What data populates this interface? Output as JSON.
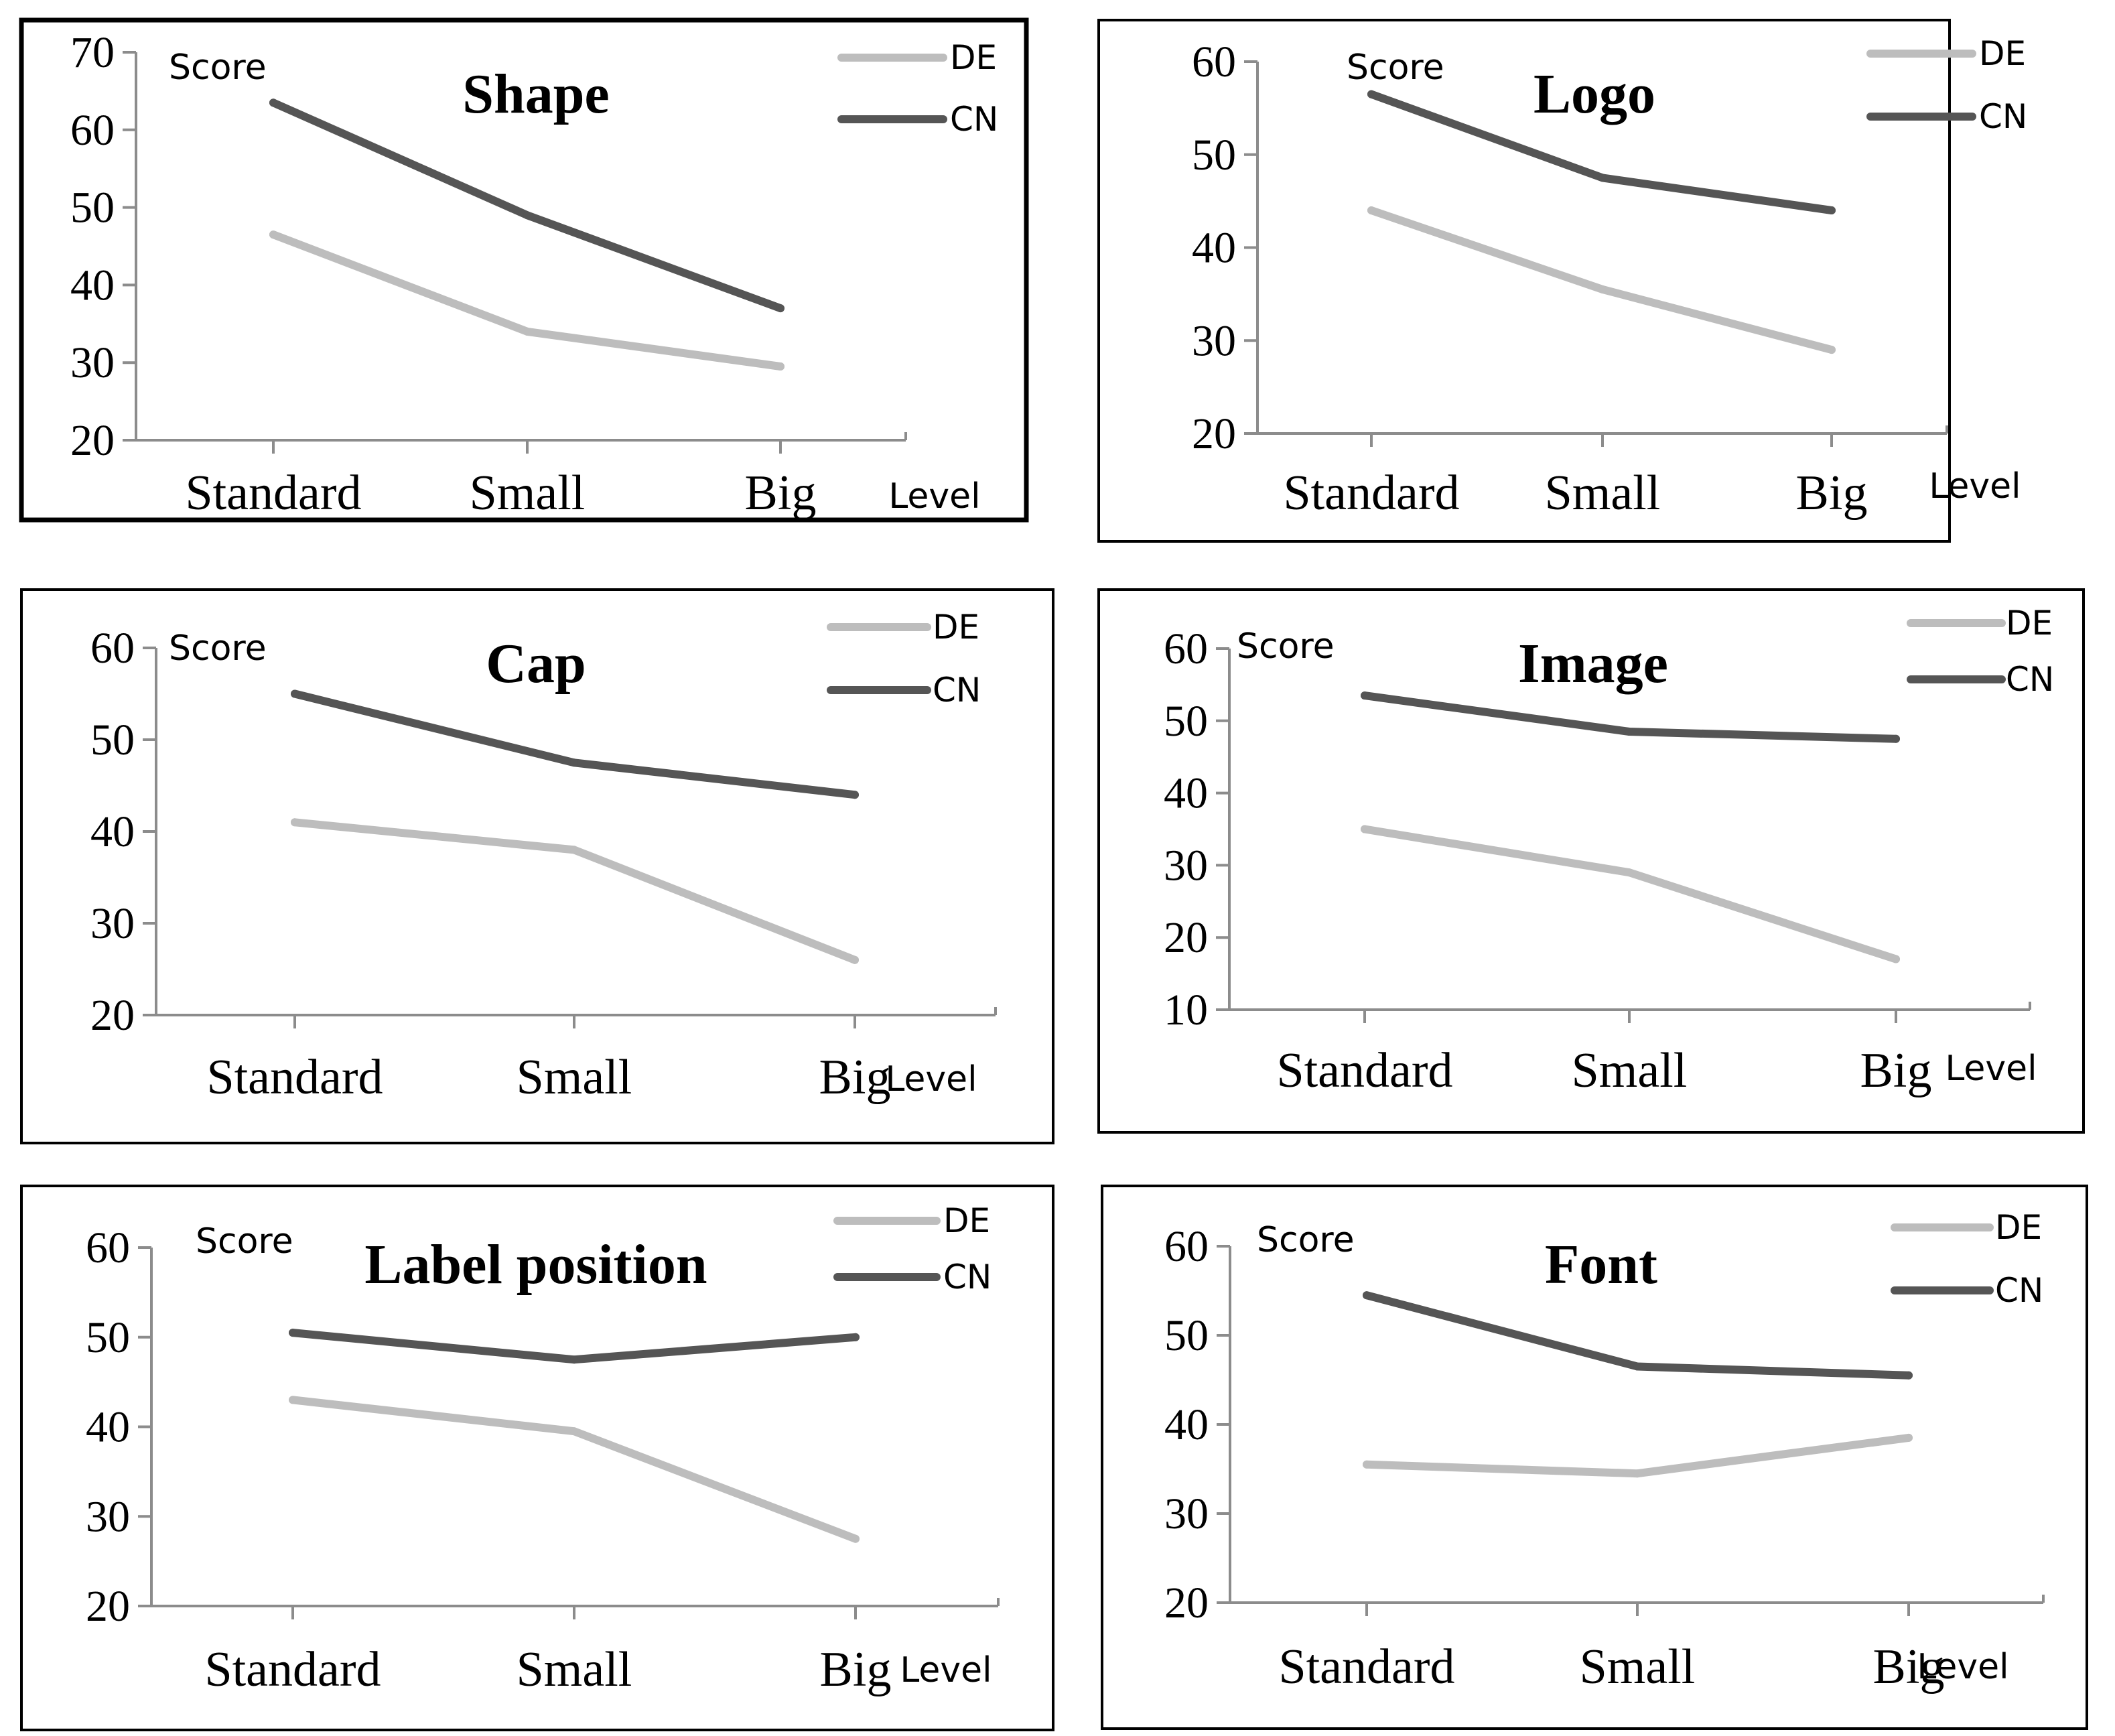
{
  "colors": {
    "de": "#bdbdbd",
    "cn": "#555555",
    "frame": "#000000",
    "axis": "#8c8c8c"
  },
  "chart_data": [
    {
      "type": "line",
      "title": "Shape",
      "ylabel": "Score",
      "xlabel": "Level",
      "categories": [
        "Standard",
        "Small",
        "Big"
      ],
      "ylim": [
        20,
        70
      ],
      "yticks": [
        20,
        30,
        40,
        50,
        60,
        70
      ],
      "series": [
        {
          "name": "DE",
          "values": [
            46.5,
            34,
            29.5
          ]
        },
        {
          "name": "CN",
          "values": [
            63.5,
            49,
            37
          ]
        }
      ]
    },
    {
      "type": "line",
      "title": "Logo",
      "ylabel": "Score",
      "xlabel": "Level",
      "categories": [
        "Standard",
        "Small",
        "Big"
      ],
      "ylim": [
        20,
        60
      ],
      "yticks": [
        20,
        30,
        40,
        50,
        60
      ],
      "series": [
        {
          "name": "DE",
          "values": [
            44,
            35.5,
            29
          ]
        },
        {
          "name": "CN",
          "values": [
            56.5,
            47.5,
            44
          ]
        }
      ]
    },
    {
      "type": "line",
      "title": "Cap",
      "ylabel": "Score",
      "xlabel": "Level",
      "categories": [
        "Standard",
        "Small",
        "Big"
      ],
      "ylim": [
        20,
        60
      ],
      "yticks": [
        20,
        30,
        40,
        50,
        60
      ],
      "series": [
        {
          "name": "DE",
          "values": [
            41,
            38,
            26
          ]
        },
        {
          "name": "CN",
          "values": [
            55,
            47.5,
            44
          ]
        }
      ]
    },
    {
      "type": "line",
      "title": "Image",
      "ylabel": "Score",
      "xlabel": "Level",
      "categories": [
        "Standard",
        "Small",
        "Big"
      ],
      "ylim": [
        10,
        60
      ],
      "yticks": [
        10,
        20,
        30,
        40,
        50,
        60
      ],
      "series": [
        {
          "name": "DE",
          "values": [
            35,
            29,
            17
          ]
        },
        {
          "name": "CN",
          "values": [
            53.5,
            48.5,
            47.5
          ]
        }
      ]
    },
    {
      "type": "line",
      "title": "Label position",
      "ylabel": "Score",
      "xlabel": "Level",
      "categories": [
        "Standard",
        "Small",
        "Big"
      ],
      "ylim": [
        20,
        60
      ],
      "yticks": [
        20,
        30,
        40,
        50,
        60
      ],
      "series": [
        {
          "name": "DE",
          "values": [
            43,
            39.5,
            27.5
          ]
        },
        {
          "name": "CN",
          "values": [
            50.5,
            47.5,
            50
          ]
        }
      ]
    },
    {
      "type": "line",
      "title": "Font",
      "ylabel": "Score",
      "xlabel": "Level",
      "categories": [
        "Standard",
        "Small",
        "Big"
      ],
      "ylim": [
        20,
        60
      ],
      "yticks": [
        20,
        30,
        40,
        50,
        60
      ],
      "series": [
        {
          "name": "DE",
          "values": [
            35.5,
            34.5,
            38.5
          ]
        },
        {
          "name": "CN",
          "values": [
            54.5,
            46.5,
            45.5
          ]
        }
      ]
    }
  ]
}
